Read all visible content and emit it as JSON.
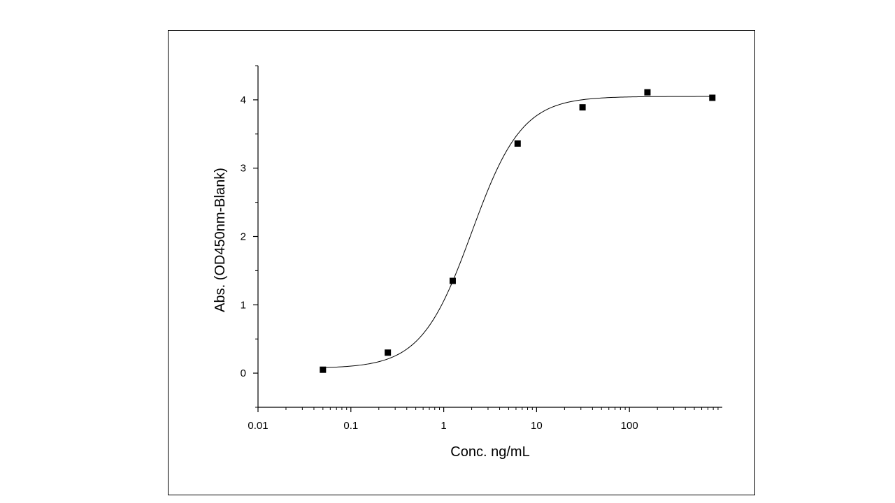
{
  "chart_data": {
    "type": "scatter",
    "title": "",
    "xlabel": "Conc. ng/mL",
    "ylabel": "Abs. (OD450nm-Blank)",
    "x_scale": "log",
    "xlim": [
      0.01,
      1000
    ],
    "ylim": [
      -0.5,
      4.5
    ],
    "x_ticks": [
      0.01,
      0.1,
      1,
      10,
      100
    ],
    "x_tick_labels": [
      "0.01",
      "0.1",
      "1",
      "10",
      "100"
    ],
    "y_ticks": [
      0,
      1,
      2,
      3,
      4
    ],
    "y_tick_labels": [
      "0",
      "1",
      "2",
      "3",
      "4"
    ],
    "grid": false,
    "legend": "none",
    "series": [
      {
        "x": [
          0.05,
          0.25,
          1.25,
          6.25,
          31.25,
          156.25,
          781.25
        ],
        "y": [
          0.05,
          0.3,
          1.35,
          3.36,
          3.89,
          4.11,
          4.03
        ]
      }
    ],
    "fit_curve": {
      "model": "4PL",
      "bottom": 0.07,
      "top": 4.05,
      "ec50": 2.0,
      "hill": 1.6
    },
    "colors": {
      "marker": "#000000",
      "line": "#000000",
      "axis": "#000000"
    }
  }
}
